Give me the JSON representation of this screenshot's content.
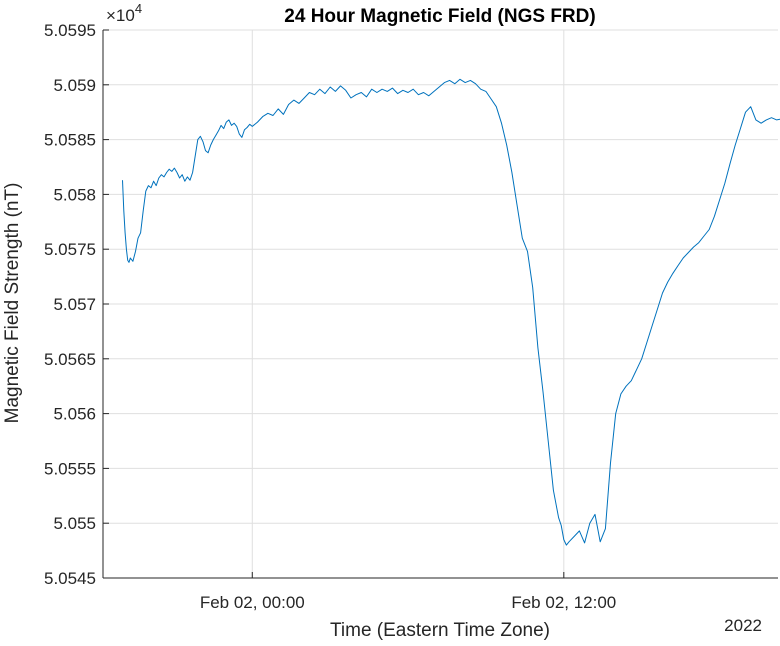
{
  "chart_data": {
    "type": "line",
    "title": "24 Hour Magnetic Field (NGS FRD)",
    "xlabel": "Time (Eastern Time Zone)",
    "ylabel": "Magnetic Field Strength (nT)",
    "x_secondary_label": "2022",
    "y_exponent_label": "×10",
    "y_exponent_power": "4",
    "x_unit": "hours relative to Feb 02, 00:00",
    "xlim": [
      -5.75,
      20.25
    ],
    "ylim": [
      50545,
      50595
    ],
    "grid": true,
    "x_ticks": [
      {
        "value": 0,
        "label": "Feb 02, 00:00"
      },
      {
        "value": 12,
        "label": "Feb 02, 12:00"
      }
    ],
    "y_ticks": [
      {
        "value": 50545,
        "label": "5.0545"
      },
      {
        "value": 50550,
        "label": "5.055"
      },
      {
        "value": 50555,
        "label": "5.0555"
      },
      {
        "value": 50560,
        "label": "5.056"
      },
      {
        "value": 50565,
        "label": "5.0565"
      },
      {
        "value": 50570,
        "label": "5.057"
      },
      {
        "value": 50575,
        "label": "5.0575"
      },
      {
        "value": 50580,
        "label": "5.058"
      },
      {
        "value": 50585,
        "label": "5.0585"
      },
      {
        "value": 50590,
        "label": "5.059"
      },
      {
        "value": 50595,
        "label": "5.0595"
      }
    ],
    "series": [
      {
        "color": "#0072BD",
        "x": [
          -5.0,
          -4.95,
          -4.9,
          -4.85,
          -4.8,
          -4.75,
          -4.7,
          -4.6,
          -4.5,
          -4.4,
          -4.3,
          -4.2,
          -4.1,
          -4.0,
          -3.9,
          -3.8,
          -3.7,
          -3.6,
          -3.5,
          -3.4,
          -3.3,
          -3.2,
          -3.1,
          -3.0,
          -2.9,
          -2.8,
          -2.7,
          -2.6,
          -2.5,
          -2.4,
          -2.3,
          -2.2,
          -2.1,
          -2.0,
          -1.9,
          -1.8,
          -1.7,
          -1.6,
          -1.5,
          -1.4,
          -1.3,
          -1.2,
          -1.1,
          -1.0,
          -0.9,
          -0.8,
          -0.7,
          -0.6,
          -0.5,
          -0.4,
          -0.3,
          -0.2,
          -0.1,
          0.0,
          0.2,
          0.4,
          0.6,
          0.8,
          1.0,
          1.2,
          1.4,
          1.6,
          1.8,
          2.0,
          2.2,
          2.4,
          2.6,
          2.8,
          3.0,
          3.2,
          3.4,
          3.6,
          3.8,
          4.0,
          4.2,
          4.4,
          4.6,
          4.8,
          5.0,
          5.2,
          5.4,
          5.6,
          5.8,
          6.0,
          6.2,
          6.4,
          6.6,
          6.8,
          7.0,
          7.2,
          7.4,
          7.6,
          7.8,
          8.0,
          8.2,
          8.4,
          8.6,
          8.8,
          9.0,
          9.2,
          9.4,
          9.6,
          9.8,
          10.0,
          10.2,
          10.4,
          10.6,
          10.8,
          11.0,
          11.2,
          11.4,
          11.6,
          11.8,
          11.9,
          12.0,
          12.1,
          12.2,
          12.4,
          12.6,
          12.8,
          13.0,
          13.2,
          13.4,
          13.6,
          13.8,
          14.0,
          14.2,
          14.4,
          14.6,
          14.8,
          15.0,
          15.2,
          15.4,
          15.6,
          15.8,
          16.0,
          16.2,
          16.4,
          16.6,
          16.8,
          17.0,
          17.2,
          17.4,
          17.6,
          17.8,
          18.0,
          18.2,
          18.4,
          18.6,
          18.8,
          19.0,
          19.2,
          19.4,
          19.6,
          19.8,
          20.0,
          20.2,
          20.4,
          20.6,
          20.8,
          21.0,
          21.2
        ],
        "y": [
          50581.3,
          50578.5,
          50576.5,
          50575.0,
          50574.0,
          50573.8,
          50574.2,
          50573.9,
          50574.8,
          50576.0,
          50576.5,
          50578.5,
          50580.3,
          50580.8,
          50580.6,
          50581.2,
          50580.8,
          50581.5,
          50581.8,
          50581.6,
          50582.0,
          50582.3,
          50582.1,
          50582.4,
          50582.0,
          50581.5,
          50581.8,
          50581.2,
          50581.6,
          50581.3,
          50582.0,
          50583.5,
          50585.0,
          50585.3,
          50584.8,
          50584.0,
          50583.8,
          50584.5,
          50585.0,
          50585.4,
          50585.8,
          50586.3,
          50586.0,
          50586.6,
          50586.8,
          50586.3,
          50586.5,
          50586.2,
          50585.5,
          50585.2,
          50585.9,
          50586.1,
          50586.4,
          50586.2,
          50586.6,
          50587.1,
          50587.4,
          50587.2,
          50587.8,
          50587.3,
          50588.2,
          50588.6,
          50588.3,
          50588.8,
          50589.3,
          50589.1,
          50589.6,
          50589.2,
          50589.8,
          50589.4,
          50589.9,
          50589.5,
          50588.8,
          50589.1,
          50589.3,
          50588.9,
          50589.6,
          50589.3,
          50589.6,
          50589.4,
          50589.7,
          50589.2,
          50589.5,
          50589.3,
          50589.6,
          50589.1,
          50589.3,
          50589.0,
          50589.4,
          50589.8,
          50590.2,
          50590.4,
          50590.1,
          50590.5,
          50590.2,
          50590.4,
          50590.1,
          50589.6,
          50589.4,
          50588.7,
          50588.0,
          50586.5,
          50584.5,
          50582.0,
          50579.0,
          50576.0,
          50574.8,
          50571.5,
          50566.0,
          50562.0,
          50557.5,
          50553.0,
          50550.5,
          50549.8,
          50548.5,
          50548.0,
          50548.3,
          50548.8,
          50549.3,
          50548.2,
          50550.0,
          50550.8,
          50548.3,
          50549.5,
          50555.5,
          50560.0,
          50561.8,
          50562.5,
          50563.0,
          50564.0,
          50565.0,
          50566.5,
          50568.0,
          50569.5,
          50571.0,
          50572.0,
          50572.8,
          50573.5,
          50574.2,
          50574.7,
          50575.2,
          50575.6,
          50576.2,
          50576.8,
          50578.0,
          50579.5,
          50581.0,
          50582.8,
          50584.5,
          50586.0,
          50587.5,
          50588.0,
          50586.8,
          50586.5,
          50586.8,
          50587.0,
          50586.8,
          50586.9,
          50586.7,
          50586.3,
          50586.1,
          50585.8
        ]
      }
    ]
  }
}
